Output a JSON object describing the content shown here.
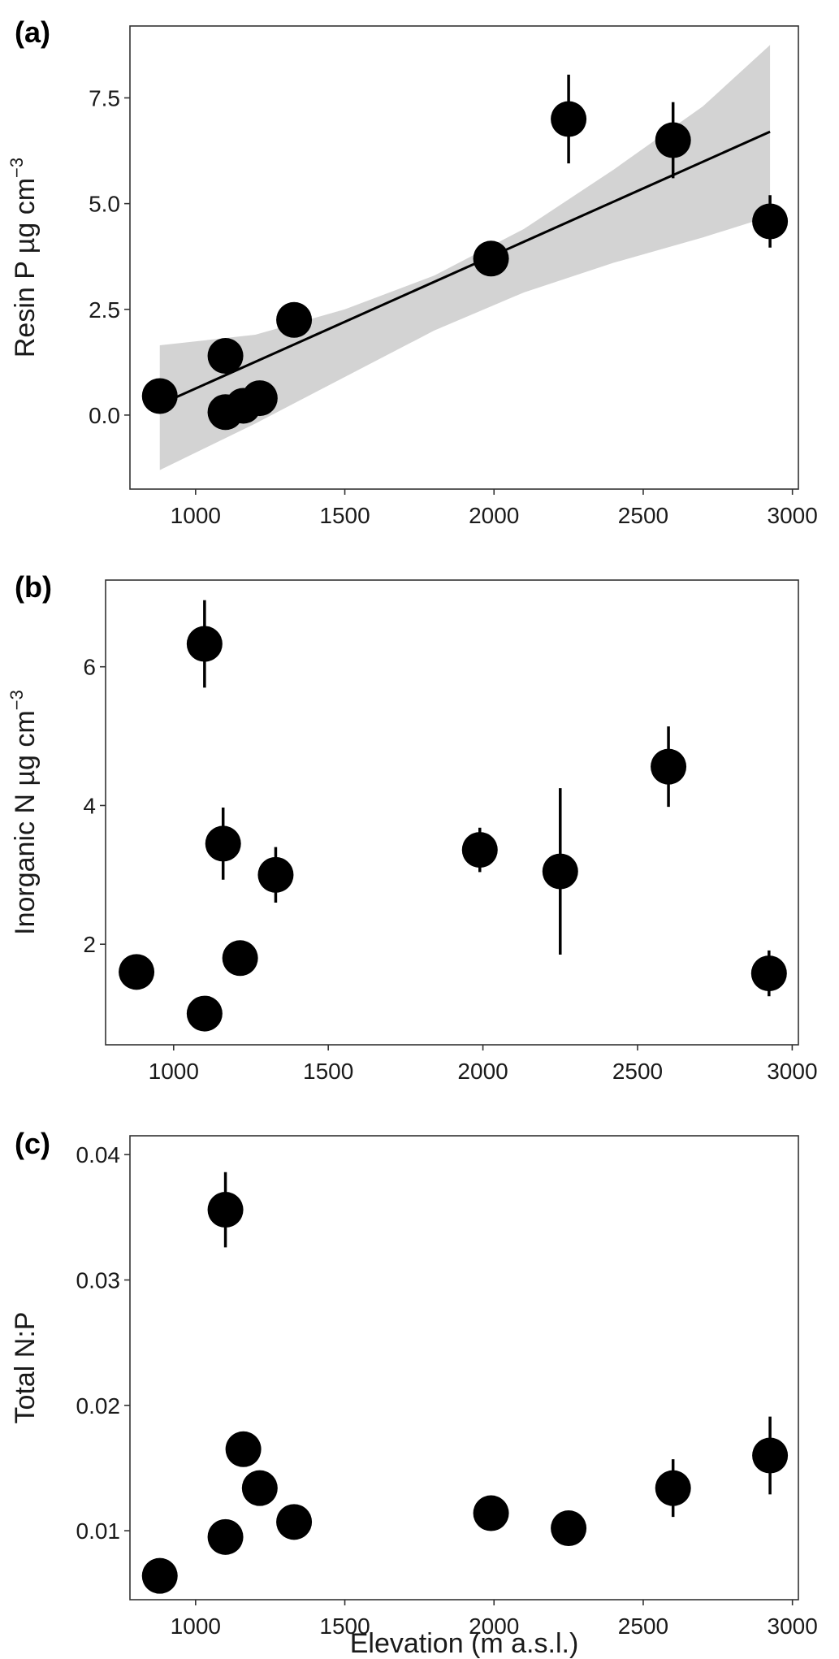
{
  "colors": {
    "points": "#000000",
    "band": "#d3d3d3",
    "frame": "#333333",
    "fit": "#000000"
  },
  "shared": {
    "xlabel": "Elevation (m a.s.l.)"
  },
  "chart_data": [
    {
      "type": "scatter",
      "panel_label": "(a)",
      "ylabel_main": "Resin P µg cm",
      "ylabel_sup": "−3",
      "xlim": [
        780,
        3020
      ],
      "ylim": [
        -1.75,
        9.2
      ],
      "xticks": [
        1000,
        1500,
        2000,
        2500,
        3000
      ],
      "yticks": [
        0,
        2.5,
        5,
        7.5
      ],
      "ytick_labels": [
        "0.0",
        "2.5",
        "5.0",
        "7.5"
      ],
      "xlabel": "",
      "points": [
        {
          "x": 880,
          "y": 0.45,
          "err": 0
        },
        {
          "x": 1100,
          "y": 1.4,
          "err": 0
        },
        {
          "x": 1100,
          "y": 0.07,
          "err": 0
        },
        {
          "x": 1160,
          "y": 0.22,
          "err": 0
        },
        {
          "x": 1215,
          "y": 0.4,
          "err": 0
        },
        {
          "x": 1330,
          "y": 2.25,
          "err": 0
        },
        {
          "x": 1990,
          "y": 3.7,
          "err": 0
        },
        {
          "x": 2250,
          "y": 7.0,
          "err": 1.05
        },
        {
          "x": 2600,
          "y": 6.5,
          "err": 0.9
        },
        {
          "x": 2925,
          "y": 4.58,
          "err": 0.62
        }
      ],
      "fit": {
        "x": [
          880,
          2925
        ],
        "y": [
          0.25,
          6.7
        ]
      },
      "band": {
        "x": [
          880,
          1200,
          1500,
          1800,
          2100,
          2400,
          2700,
          2925
        ],
        "lower": [
          -1.3,
          -0.2,
          0.9,
          2.0,
          2.9,
          3.6,
          4.2,
          4.7
        ],
        "upper": [
          1.65,
          1.9,
          2.5,
          3.3,
          4.4,
          5.8,
          7.3,
          8.75
        ]
      }
    },
    {
      "type": "scatter",
      "panel_label": "(b)",
      "ylabel_main": "Inorganic N µg cm",
      "ylabel_sup": "−3",
      "xlim": [
        780,
        3020
      ],
      "ylim": [
        0.55,
        7.25
      ],
      "xticks": [
        1000,
        1500,
        2000,
        2500,
        3000
      ],
      "yticks": [
        2,
        4,
        6
      ],
      "ytick_labels": [
        "2",
        "4",
        "6"
      ],
      "xlabel": "",
      "points": [
        {
          "x": 880,
          "y": 1.6,
          "err": 0
        },
        {
          "x": 1100,
          "y": 6.33,
          "err": 0.63
        },
        {
          "x": 1100,
          "y": 1.0,
          "err": 0
        },
        {
          "x": 1160,
          "y": 3.45,
          "err": 0.52
        },
        {
          "x": 1215,
          "y": 1.8,
          "err": 0
        },
        {
          "x": 1330,
          "y": 3.0,
          "err": 0.4
        },
        {
          "x": 1990,
          "y": 3.36,
          "err": 0.32
        },
        {
          "x": 2250,
          "y": 3.05,
          "err": 1.2
        },
        {
          "x": 2600,
          "y": 4.56,
          "err": 0.58
        },
        {
          "x": 2925,
          "y": 1.58,
          "err": 0.33
        }
      ]
    },
    {
      "type": "scatter",
      "panel_label": "(c)",
      "ylabel_main": "Total N:P",
      "ylabel_sup": "",
      "xlim": [
        780,
        3020
      ],
      "ylim": [
        0.0045,
        0.0415
      ],
      "xticks": [
        1000,
        1500,
        2000,
        2500,
        3000
      ],
      "yticks": [
        0.01,
        0.02,
        0.03,
        0.04
      ],
      "ytick_labels": [
        "0.01",
        "0.02",
        "0.03",
        "0.04"
      ],
      "xlabel": "Elevation (m a.s.l.)",
      "points": [
        {
          "x": 880,
          "y": 0.0064,
          "err": 0
        },
        {
          "x": 1100,
          "y": 0.0356,
          "err": 0.003
        },
        {
          "x": 1100,
          "y": 0.0095,
          "err": 0
        },
        {
          "x": 1160,
          "y": 0.0165,
          "err": 0
        },
        {
          "x": 1215,
          "y": 0.0134,
          "err": 0
        },
        {
          "x": 1330,
          "y": 0.0107,
          "err": 0
        },
        {
          "x": 1990,
          "y": 0.0114,
          "err": 0
        },
        {
          "x": 2250,
          "y": 0.0102,
          "err": 0
        },
        {
          "x": 2600,
          "y": 0.0134,
          "err": 0.0023
        },
        {
          "x": 2925,
          "y": 0.016,
          "err": 0.0031
        }
      ]
    }
  ]
}
